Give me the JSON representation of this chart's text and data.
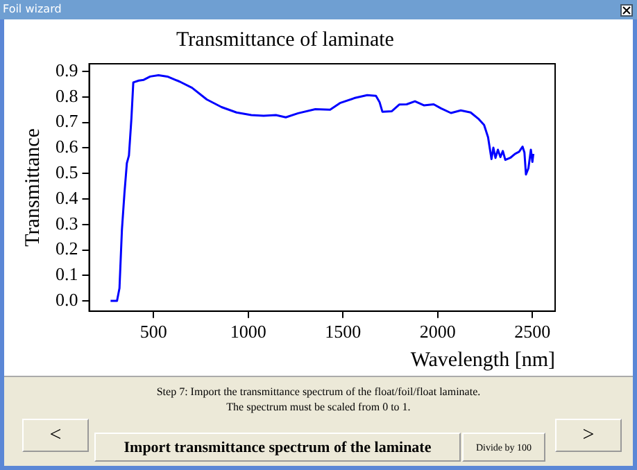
{
  "chart_data": {
    "type": "line",
    "title": "Transmittance of laminate",
    "xlabel": "Wavelength [nm]",
    "ylabel": "Transmittance",
    "annotations": [
      "Foil wizard",
      "Step 7: Import the transmittance spectrum of the float/foil/float laminate.",
      "The spectrum must be scaled from 0 to 1.",
      "<",
      "Import transmittance spectrum of the laminate",
      "Divide by 100",
      ">"
    ],
    "x": [
      273,
      307,
      320,
      333,
      346,
      359,
      370,
      383,
      393,
      422,
      448,
      482,
      526,
      573,
      638,
      703,
      781,
      859,
      938,
      1016,
      1081,
      1146,
      1198,
      1263,
      1354,
      1432,
      1484,
      1563,
      1628,
      1674,
      1693,
      1708,
      1758,
      1797,
      1836,
      1880,
      1927,
      1979,
      2018,
      2070,
      2122,
      2174,
      2214,
      2245,
      2266,
      2284,
      2294,
      2305,
      2318,
      2331,
      2344,
      2357,
      2383,
      2409,
      2430,
      2448,
      2458,
      2466,
      2479,
      2492,
      2500,
      2505
    ],
    "series": [
      {
        "color": "#0000ff",
        "values": [
          0.0,
          0.0,
          0.05,
          0.28,
          0.42,
          0.54,
          0.57,
          0.715,
          0.857,
          0.864,
          0.867,
          0.88,
          0.885,
          0.88,
          0.86,
          0.836,
          0.79,
          0.76,
          0.739,
          0.729,
          0.726,
          0.729,
          0.72,
          0.736,
          0.752,
          0.75,
          0.776,
          0.796,
          0.807,
          0.804,
          0.78,
          0.742,
          0.744,
          0.77,
          0.771,
          0.783,
          0.767,
          0.771,
          0.755,
          0.737,
          0.747,
          0.739,
          0.715,
          0.69,
          0.642,
          0.556,
          0.601,
          0.561,
          0.593,
          0.564,
          0.588,
          0.553,
          0.561,
          0.577,
          0.585,
          0.605,
          0.582,
          0.496,
          0.52,
          0.593,
          0.545,
          0.577
        ]
      }
    ],
    "xlim": [
      160,
      2620
    ],
    "xticks": [
      500,
      1000,
      1500,
      2000,
      2500
    ],
    "ylim": [
      -0.04,
      0.93
    ],
    "yticks": [
      {
        "value": 0,
        "label": "0.0"
      },
      0.1,
      0.2,
      0.3,
      0.4,
      0.5,
      0.6,
      0.7,
      0.8,
      0.9
    ],
    "grid": false,
    "legend": false,
    "marker": "none",
    "line_style": "solid"
  }
}
